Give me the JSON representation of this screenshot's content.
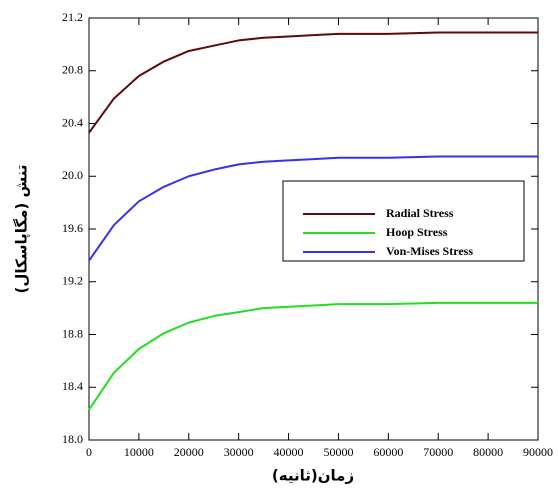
{
  "chart_data": {
    "type": "line",
    "x_label": "زمان(ثانیه)",
    "y_label": "تنش (مگاپاسکال)",
    "x": [
      0,
      5000,
      10000,
      15000,
      20000,
      25000,
      30000,
      35000,
      40000,
      45000,
      50000,
      60000,
      70000,
      80000,
      90000
    ],
    "series": [
      {
        "name": "Radial Stress",
        "color": "#5c0a0a",
        "values": [
          20.33,
          20.59,
          20.76,
          20.87,
          20.95,
          20.99,
          21.03,
          21.05,
          21.06,
          21.07,
          21.08,
          21.08,
          21.09,
          21.09,
          21.09
        ]
      },
      {
        "name": "Hoop Stress",
        "color": "#22dd22",
        "values": [
          18.23,
          18.51,
          18.69,
          18.81,
          18.89,
          18.94,
          18.97,
          19.0,
          19.01,
          19.02,
          19.03,
          19.03,
          19.04,
          19.04,
          19.04
        ]
      },
      {
        "name": "Von-Mises Stress",
        "color": "#3333ee",
        "values": [
          19.36,
          19.63,
          19.81,
          19.92,
          20.0,
          20.05,
          20.09,
          20.11,
          20.12,
          20.13,
          20.14,
          20.14,
          20.15,
          20.15,
          20.15
        ]
      }
    ],
    "xlim": [
      0,
      90000
    ],
    "xticks": [
      0,
      10000,
      20000,
      30000,
      40000,
      50000,
      60000,
      70000,
      80000,
      90000
    ],
    "ylim": [
      18.0,
      21.2
    ],
    "yticks": [
      {
        "value": 18,
        "label": "18.0"
      },
      18.4,
      18.8,
      19.2,
      19.6,
      {
        "value": 20,
        "label": "20.0"
      },
      20.4,
      20.8,
      21.2
    ]
  }
}
